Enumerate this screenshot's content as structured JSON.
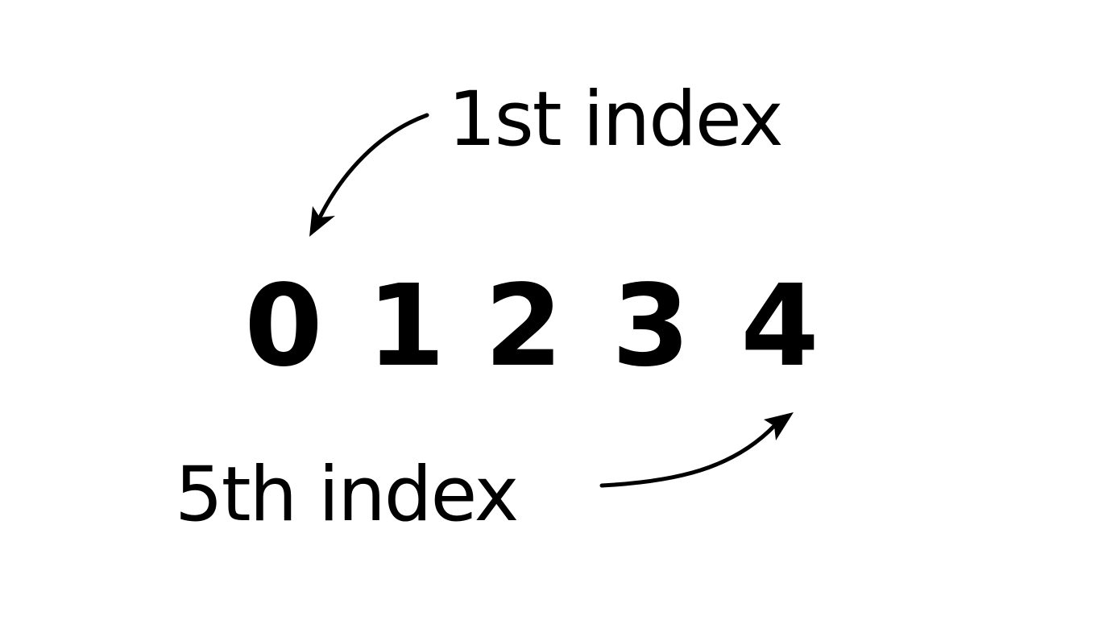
{
  "labels": {
    "top": "1st index",
    "bottom": "5th index"
  },
  "digits": [
    "0",
    "1",
    "2",
    "3",
    "4"
  ],
  "colors": {
    "ink": "#000000",
    "background": "#ffffff"
  }
}
